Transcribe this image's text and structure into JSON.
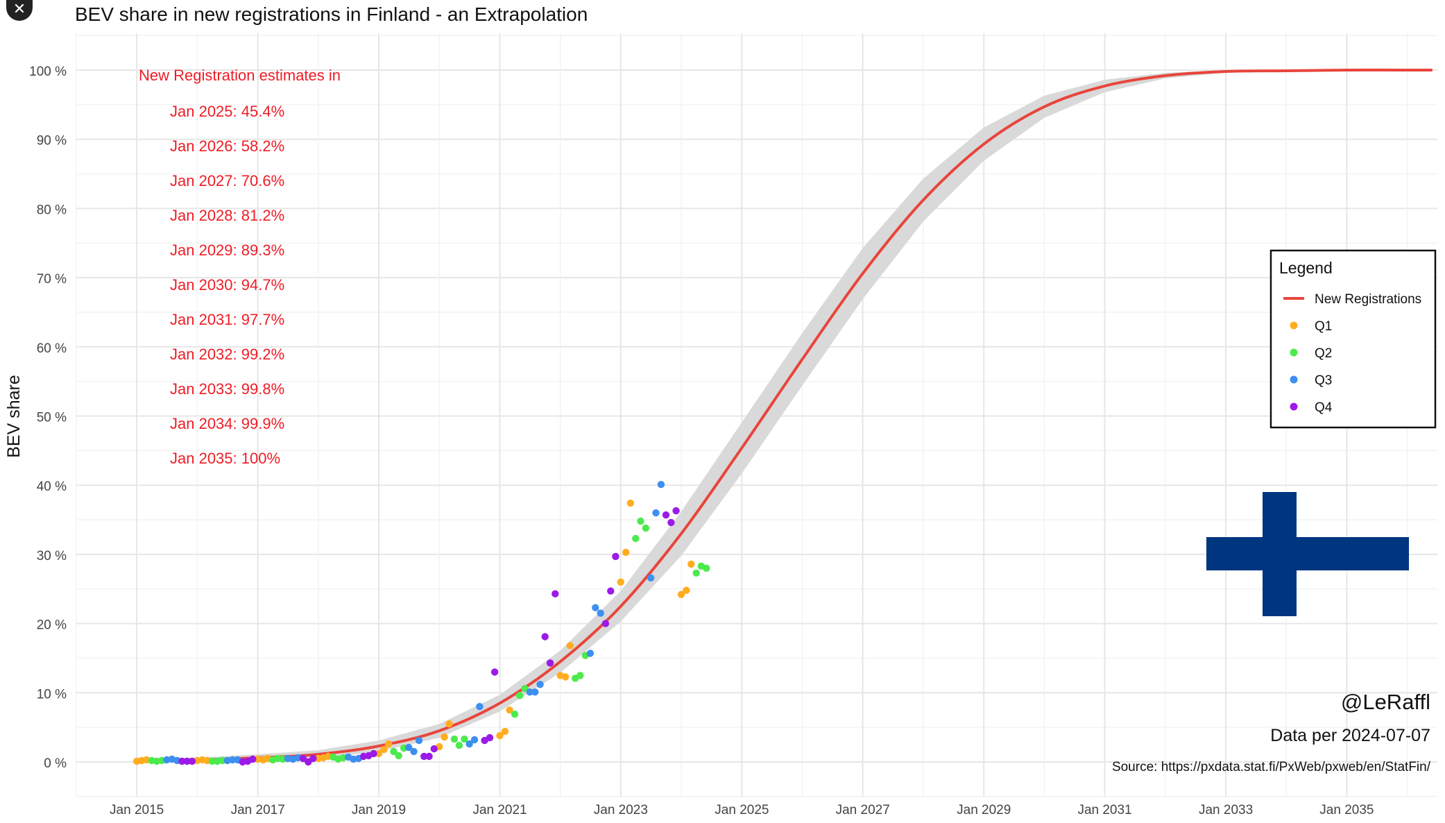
{
  "close_button": {
    "label": "✕",
    "icon": "close-icon"
  },
  "chart_data": {
    "type": "scatter",
    "title": "BEV share in new registrations in Finland - an Extrapolation",
    "xlabel": "",
    "ylabel": "BEV share",
    "xlim": [
      "2014-01-01",
      "2036-07-01"
    ],
    "ylim": [
      -5,
      105
    ],
    "x_ticks": [
      "Jan 2015",
      "Jan 2017",
      "Jan 2019",
      "Jan 2021",
      "Jan 2023",
      "Jan 2025",
      "Jan 2027",
      "Jan 2029",
      "Jan 2031",
      "Jan 2033",
      "Jan 2035"
    ],
    "y_ticks": [
      "0 %",
      "10 %",
      "20 %",
      "30 %",
      "40 %",
      "50 %",
      "60 %",
      "70 %",
      "80 %",
      "90 %",
      "100 %"
    ],
    "grid": true,
    "legend": {
      "title": "Legend",
      "placement": "right",
      "entries": [
        {
          "label": "New Registrations",
          "color": "#e8453c",
          "kind": "line"
        },
        {
          "label": "Q1",
          "color": "#ffad1f",
          "kind": "point"
        },
        {
          "label": "Q2",
          "color": "#4cea4c",
          "kind": "point"
        },
        {
          "label": "Q3",
          "color": "#3d8ff0",
          "kind": "point"
        },
        {
          "label": "Q4",
          "color": "#9b1ae8",
          "kind": "point"
        }
      ]
    },
    "annotations": {
      "heading": "New Registration estimates in",
      "estimates": [
        "Jan 2025: 45.4%",
        "Jan 2026: 58.2%",
        "Jan 2027: 70.6%",
        "Jan 2028: 81.2%",
        "Jan 2029: 89.3%",
        "Jan 2030: 94.7%",
        "Jan 2031: 97.7%",
        "Jan 2032: 99.2%",
        "Jan 2033: 99.8%",
        "Jan 2034: 99.9%",
        "Jan 2035: 100%"
      ],
      "handle": "@LeRaffl",
      "data_date": "Data per 2024-07-07",
      "source": "Source: https://pxdata.stat.fi/PxWeb/pxweb/en/StatFin/"
    },
    "series": [
      {
        "name": "New Registrations",
        "kind": "fit_curve",
        "color": "#e8453c",
        "band_color": "#d9d9d9",
        "x": [
          "2015-01-01",
          "2016-01-01",
          "2017-01-01",
          "2018-01-01",
          "2019-01-01",
          "2020-01-01",
          "2021-01-01",
          "2022-01-01",
          "2023-01-01",
          "2024-01-01",
          "2025-01-01",
          "2026-01-01",
          "2027-01-01",
          "2028-01-01",
          "2029-01-01",
          "2030-01-01",
          "2031-01-01",
          "2032-01-01",
          "2033-01-01",
          "2034-01-01",
          "2035-01-01",
          "2036-01-01",
          "2036-06-01"
        ],
        "y": [
          0.1,
          0.3,
          0.6,
          1.1,
          2.3,
          4.5,
          8.5,
          14.5,
          22.5,
          33.0,
          45.4,
          58.2,
          70.6,
          81.2,
          89.3,
          94.7,
          97.7,
          99.2,
          99.8,
          99.9,
          100,
          100,
          100
        ],
        "band": [
          0.2,
          0.3,
          0.5,
          0.6,
          0.8,
          1.0,
          1.2,
          1.6,
          2.2,
          3.2,
          3.7,
          3.8,
          3.7,
          3.1,
          2.4,
          1.6,
          0.9,
          0.4,
          0.2,
          0.1,
          0,
          0,
          0
        ]
      },
      {
        "name": "Q1",
        "kind": "points",
        "color": "#ffad1f",
        "points": [
          [
            "2015-01-01",
            0.1
          ],
          [
            "2015-02-01",
            0.2
          ],
          [
            "2015-03-01",
            0.3
          ],
          [
            "2016-01-01",
            0.2
          ],
          [
            "2016-02-01",
            0.3
          ],
          [
            "2016-03-01",
            0.2
          ],
          [
            "2017-01-01",
            0.4
          ],
          [
            "2017-02-01",
            0.3
          ],
          [
            "2017-03-01",
            0.5
          ],
          [
            "2018-01-01",
            0.5
          ],
          [
            "2018-02-01",
            0.6
          ],
          [
            "2018-03-01",
            0.8
          ],
          [
            "2019-01-01",
            1.2
          ],
          [
            "2019-02-01",
            1.8
          ],
          [
            "2019-03-01",
            2.6
          ],
          [
            "2020-01-01",
            2.2
          ],
          [
            "2020-02-01",
            3.6
          ],
          [
            "2020-03-01",
            5.5
          ],
          [
            "2021-01-01",
            3.8
          ],
          [
            "2021-02-01",
            4.4
          ],
          [
            "2021-03-01",
            7.5
          ],
          [
            "2022-01-01",
            12.5
          ],
          [
            "2022-02-01",
            12.3
          ],
          [
            "2022-03-01",
            16.8
          ],
          [
            "2023-01-01",
            26.0
          ],
          [
            "2023-02-01",
            30.3
          ],
          [
            "2023-03-01",
            37.4
          ],
          [
            "2024-01-01",
            24.2
          ],
          [
            "2024-02-01",
            24.8
          ],
          [
            "2024-03-01",
            28.6
          ]
        ]
      },
      {
        "name": "Q2",
        "kind": "points",
        "color": "#4cea4c",
        "points": [
          [
            "2015-04-01",
            0.2
          ],
          [
            "2015-05-01",
            0.1
          ],
          [
            "2015-06-01",
            0.2
          ],
          [
            "2016-04-01",
            0.1
          ],
          [
            "2016-05-01",
            0.1
          ],
          [
            "2016-06-01",
            0.2
          ],
          [
            "2017-04-01",
            0.3
          ],
          [
            "2017-05-01",
            0.5
          ],
          [
            "2017-06-01",
            0.4
          ],
          [
            "2018-04-01",
            0.7
          ],
          [
            "2018-05-01",
            0.4
          ],
          [
            "2018-06-01",
            0.6
          ],
          [
            "2019-04-01",
            1.5
          ],
          [
            "2019-05-01",
            0.9
          ],
          [
            "2019-06-01",
            2.0
          ],
          [
            "2020-04-01",
            3.3
          ],
          [
            "2020-05-01",
            2.4
          ],
          [
            "2020-06-01",
            3.3
          ],
          [
            "2021-04-01",
            6.9
          ],
          [
            "2021-05-01",
            9.6
          ],
          [
            "2021-06-01",
            10.6
          ],
          [
            "2022-04-01",
            12.1
          ],
          [
            "2022-05-01",
            12.5
          ],
          [
            "2022-06-01",
            15.4
          ],
          [
            "2023-04-01",
            32.3
          ],
          [
            "2023-05-01",
            34.8
          ],
          [
            "2023-06-01",
            33.8
          ],
          [
            "2024-04-01",
            27.3
          ],
          [
            "2024-05-01",
            28.3
          ],
          [
            "2024-06-01",
            28.0
          ]
        ]
      },
      {
        "name": "Q3",
        "kind": "points",
        "color": "#3d8ff0",
        "points": [
          [
            "2015-07-01",
            0.3
          ],
          [
            "2015-08-01",
            0.4
          ],
          [
            "2015-09-01",
            0.2
          ],
          [
            "2016-07-01",
            0.2
          ],
          [
            "2016-08-01",
            0.3
          ],
          [
            "2016-09-01",
            0.3
          ],
          [
            "2017-07-01",
            0.5
          ],
          [
            "2017-08-01",
            0.4
          ],
          [
            "2017-09-01",
            0.6
          ],
          [
            "2018-07-01",
            0.7
          ],
          [
            "2018-08-01",
            0.4
          ],
          [
            "2018-09-01",
            0.5
          ],
          [
            "2019-07-01",
            2.1
          ],
          [
            "2019-08-01",
            1.5
          ],
          [
            "2019-09-01",
            3.1
          ],
          [
            "2020-07-01",
            2.6
          ],
          [
            "2020-08-01",
            3.2
          ],
          [
            "2020-09-01",
            8.0
          ],
          [
            "2021-07-01",
            10.1
          ],
          [
            "2021-08-01",
            10.1
          ],
          [
            "2021-09-01",
            11.2
          ],
          [
            "2022-07-01",
            15.7
          ],
          [
            "2022-08-01",
            22.3
          ],
          [
            "2022-09-01",
            21.5
          ],
          [
            "2023-07-01",
            26.6
          ],
          [
            "2023-08-01",
            36.0
          ],
          [
            "2023-09-01",
            40.1
          ]
        ]
      },
      {
        "name": "Q4",
        "kind": "points",
        "color": "#9b1ae8",
        "points": [
          [
            "2015-10-01",
            0.1
          ],
          [
            "2015-11-01",
            0.1
          ],
          [
            "2015-12-01",
            0.1
          ],
          [
            "2016-10-01",
            0.0
          ],
          [
            "2016-11-01",
            0.1
          ],
          [
            "2016-12-01",
            0.4
          ],
          [
            "2017-10-01",
            0.5
          ],
          [
            "2017-11-01",
            0.0
          ],
          [
            "2017-12-01",
            0.5
          ],
          [
            "2018-10-01",
            0.8
          ],
          [
            "2018-11-01",
            0.9
          ],
          [
            "2018-12-01",
            1.2
          ],
          [
            "2019-10-01",
            0.8
          ],
          [
            "2019-11-01",
            0.8
          ],
          [
            "2019-12-01",
            1.9
          ],
          [
            "2020-10-01",
            3.1
          ],
          [
            "2020-11-01",
            3.5
          ],
          [
            "2020-12-01",
            13.0
          ],
          [
            "2021-10-01",
            18.1
          ],
          [
            "2021-11-01",
            14.3
          ],
          [
            "2021-12-01",
            24.3
          ],
          [
            "2022-10-01",
            20.0
          ],
          [
            "2022-11-01",
            24.7
          ],
          [
            "2022-12-01",
            29.7
          ],
          [
            "2023-10-01",
            35.7
          ],
          [
            "2023-11-01",
            34.6
          ],
          [
            "2023-12-01",
            36.3
          ]
        ]
      }
    ]
  }
}
